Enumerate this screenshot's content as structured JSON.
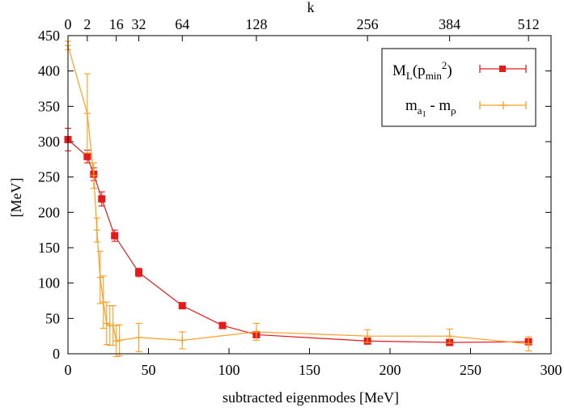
{
  "chart_data": {
    "type": "line",
    "xlabel": "subtracted eigenmodes [MeV]",
    "ylabel": "[MeV]",
    "top_axis_label": "k",
    "xlim": [
      0,
      300
    ],
    "ylim": [
      0,
      450
    ],
    "x_ticks": [
      0,
      50,
      100,
      150,
      200,
      250,
      300
    ],
    "y_ticks": [
      0,
      50,
      100,
      150,
      200,
      250,
      300,
      350,
      400,
      450
    ],
    "top_ticks": [
      {
        "label": "0",
        "x": 0
      },
      {
        "label": "2",
        "x": 12
      },
      {
        "label": "16",
        "x": 30
      },
      {
        "label": "32",
        "x": 44
      },
      {
        "label": "64",
        "x": 71
      },
      {
        "label": "128",
        "x": 117
      },
      {
        "label": "256",
        "x": 186
      },
      {
        "label": "384",
        "x": 237
      },
      {
        "label": "512",
        "x": 286
      }
    ],
    "legend_position": "top-right",
    "series": [
      {
        "name": "M_L(p_min^2)",
        "legend": {
          "base": "M",
          "sub1": "L",
          "mid": "(p",
          "sub2": "min",
          "sup": "2",
          "end": ")"
        },
        "color": "#e41a1c",
        "marker": "square",
        "points": [
          {
            "x": 0,
            "y": 303,
            "err": 16
          },
          {
            "x": 12,
            "y": 279,
            "err": 9
          },
          {
            "x": 16,
            "y": 254,
            "err": 9
          },
          {
            "x": 21,
            "y": 219,
            "err": 10
          },
          {
            "x": 29,
            "y": 167,
            "err": 8
          },
          {
            "x": 44,
            "y": 115,
            "err": 6
          },
          {
            "x": 71,
            "y": 68,
            "err": 3
          },
          {
            "x": 96,
            "y": 40,
            "err": 3
          },
          {
            "x": 117,
            "y": 27,
            "err": 4
          },
          {
            "x": 186,
            "y": 18,
            "err": 3
          },
          {
            "x": 237,
            "y": 16,
            "err": 3
          },
          {
            "x": 286,
            "y": 17,
            "err": 3
          }
        ]
      },
      {
        "name": "m_a1 - m_rho",
        "legend": {
          "base1": "m",
          "sub1": "a",
          "subsub": "1",
          "minus": " - ",
          "base2": "m",
          "sub2": "ρ"
        },
        "color": "#ff9d1f",
        "marker": "plus",
        "points": [
          {
            "x": 0,
            "y": 436,
            "err": 6
          },
          {
            "x": 12,
            "y": 340,
            "err": 56
          },
          {
            "x": 16,
            "y": 252,
            "err": 18
          },
          {
            "x": 18,
            "y": 175,
            "err": 17
          },
          {
            "x": 20,
            "y": 108,
            "err": 37
          },
          {
            "x": 22,
            "y": 73,
            "err": 37
          },
          {
            "x": 24,
            "y": 43,
            "err": 30
          },
          {
            "x": 26,
            "y": 40,
            "err": 28
          },
          {
            "x": 28,
            "y": 40,
            "err": 28
          },
          {
            "x": 30,
            "y": 18,
            "err": 22
          },
          {
            "x": 32,
            "y": 19,
            "err": 22
          },
          {
            "x": 44,
            "y": 23,
            "err": 20
          },
          {
            "x": 71,
            "y": 19,
            "err": 12
          },
          {
            "x": 117,
            "y": 31,
            "err": 12
          },
          {
            "x": 186,
            "y": 25,
            "err": 9
          },
          {
            "x": 237,
            "y": 25,
            "err": 10
          },
          {
            "x": 286,
            "y": 14,
            "err": 10
          }
        ]
      }
    ]
  }
}
